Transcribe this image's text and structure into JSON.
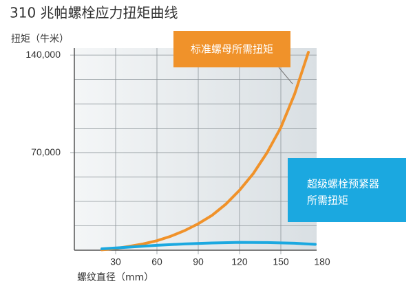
{
  "chart_data": {
    "type": "line",
    "title": "310 兆帕螺栓应力扭矩曲线",
    "y_label": "扭矩（牛米）",
    "x_label": "螺纹直径（mm）",
    "xlim": [
      0,
      180
    ],
    "xticks": [
      30,
      60,
      90,
      120,
      150,
      180
    ],
    "ylim": [
      0,
      145000
    ],
    "yticks": [
      {
        "value": 70000,
        "label": "70,000"
      },
      {
        "value": 140000,
        "label": "140,000"
      }
    ],
    "y_minor_ticks": [
      17500,
      35000,
      52500,
      87500,
      105000,
      122500
    ],
    "grid": true,
    "series": [
      {
        "name": "标准螺母所需扭矩",
        "color": "#f0922a",
        "x": [
          20,
          30,
          40,
          50,
          60,
          70,
          80,
          90,
          100,
          110,
          120,
          130,
          140,
          150,
          160,
          170
        ],
        "values": [
          300,
          1200,
          2800,
          4500,
          6800,
          10000,
          14000,
          19000,
          25000,
          33000,
          43000,
          55000,
          70000,
          88000,
          112000,
          142000
        ]
      },
      {
        "name": [
          "超级螺栓预紧器",
          "所需扭矩"
        ],
        "color": "#1ba8e0",
        "x": [
          20,
          40,
          60,
          80,
          100,
          120,
          140,
          160,
          175
        ],
        "values": [
          1000,
          2200,
          3500,
          4500,
          5200,
          5600,
          5500,
          5000,
          4200
        ]
      }
    ]
  }
}
